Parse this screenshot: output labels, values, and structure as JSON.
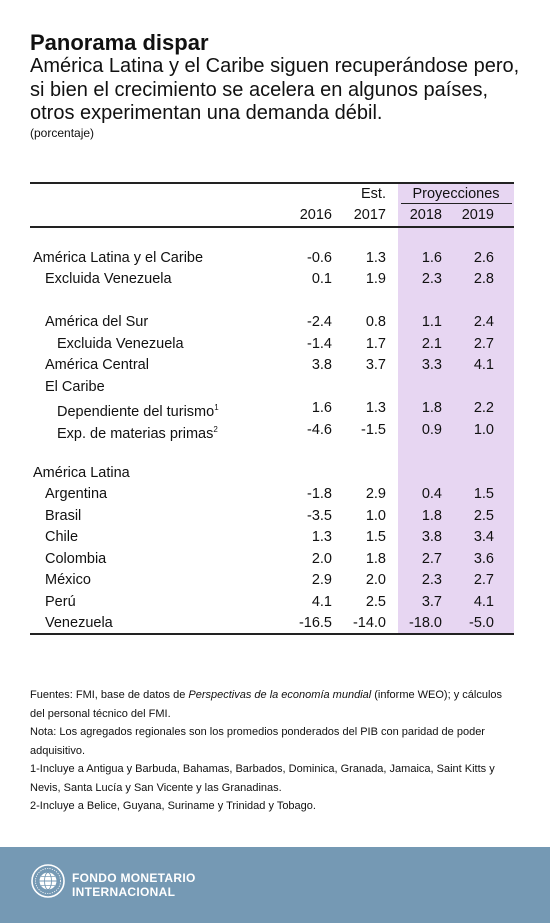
{
  "header": {
    "title": "Panorama dispar",
    "subtitle": "América Latina y el Caribe siguen recuperándose pero, si bien el crecimiento se acelera en algunos países, otros experimentan una demanda débil.",
    "unit": "(porcentaje)"
  },
  "table": {
    "est_label": "Est.",
    "proj_label": "Proyecciones",
    "years": [
      "2016",
      "2017",
      "2018",
      "2019"
    ],
    "rows": [
      {
        "label": "América Latina y el Caribe",
        "values": [
          "-0.6",
          "1.3",
          "1.6",
          "2.6"
        ]
      },
      {
        "label": "Excluida Venezuela",
        "values": [
          "0.1",
          "1.9",
          "2.3",
          "2.8"
        ]
      },
      {
        "label": "América del Sur",
        "values": [
          "-2.4",
          "0.8",
          "1.1",
          "2.4"
        ]
      },
      {
        "label": "Excluida Venezuela",
        "values": [
          "-1.4",
          "1.7",
          "2.1",
          "2.7"
        ]
      },
      {
        "label": "América Central",
        "values": [
          "3.8",
          "3.7",
          "3.3",
          "4.1"
        ]
      },
      {
        "label": "El Caribe"
      },
      {
        "label": "Dependiente del turismo",
        "sup": "1",
        "values": [
          "1.6",
          "1.3",
          "1.8",
          "2.2"
        ]
      },
      {
        "label": "Exp. de materias primas",
        "sup": "2",
        "values": [
          "-4.6",
          "-1.5",
          "0.9",
          "1.0"
        ]
      },
      {
        "label": "América Latina"
      },
      {
        "label": "Argentina",
        "values": [
          "-1.8",
          "2.9",
          "0.4",
          "1.5"
        ]
      },
      {
        "label": "Brasil",
        "values": [
          "-3.5",
          "1.0",
          "1.8",
          "2.5"
        ]
      },
      {
        "label": "Chile",
        "values": [
          "1.3",
          "1.5",
          "3.8",
          "3.4"
        ]
      },
      {
        "label": "Colombia",
        "values": [
          "2.0",
          "1.8",
          "2.7",
          "3.6"
        ]
      },
      {
        "label": "México",
        "values": [
          "2.9",
          "2.0",
          "2.3",
          "2.7"
        ]
      },
      {
        "label": "Perú",
        "values": [
          "4.1",
          "2.5",
          "3.7",
          "4.1"
        ]
      },
      {
        "label": "Venezuela",
        "values": [
          "-16.5",
          "-14.0",
          "-18.0",
          "-5.0"
        ]
      }
    ]
  },
  "notes": {
    "sources_prefix": "Fuentes: FMI, base de datos de ",
    "sources_italic": "Perspectivas de la economía mundial",
    "sources_suffix": " (informe WEO); y cálculos del personal técnico del FMI.",
    "note": "Nota: Los agregados regionales son los promedios ponderados del PIB con paridad de poder adquisitivo.",
    "footnote1": "1-Incluye a Antigua y Barbuda, Bahamas, Barbados, Dominica, Granada, Jamaica, Saint Kitts y Nevis, Santa Lucía y San Vicente y las Granadinas.",
    "footnote2": "2-Incluye a Belice, Guyana, Suriname y Trinidad y Tobago."
  },
  "footer": {
    "logo_icon": "imf-seal-icon",
    "org_line1": "FONDO MONETARIO",
    "org_line2": "INTERNACIONAL"
  },
  "colors": {
    "projection_band": "#e7d6f2",
    "footer_band": "#7599b4"
  }
}
